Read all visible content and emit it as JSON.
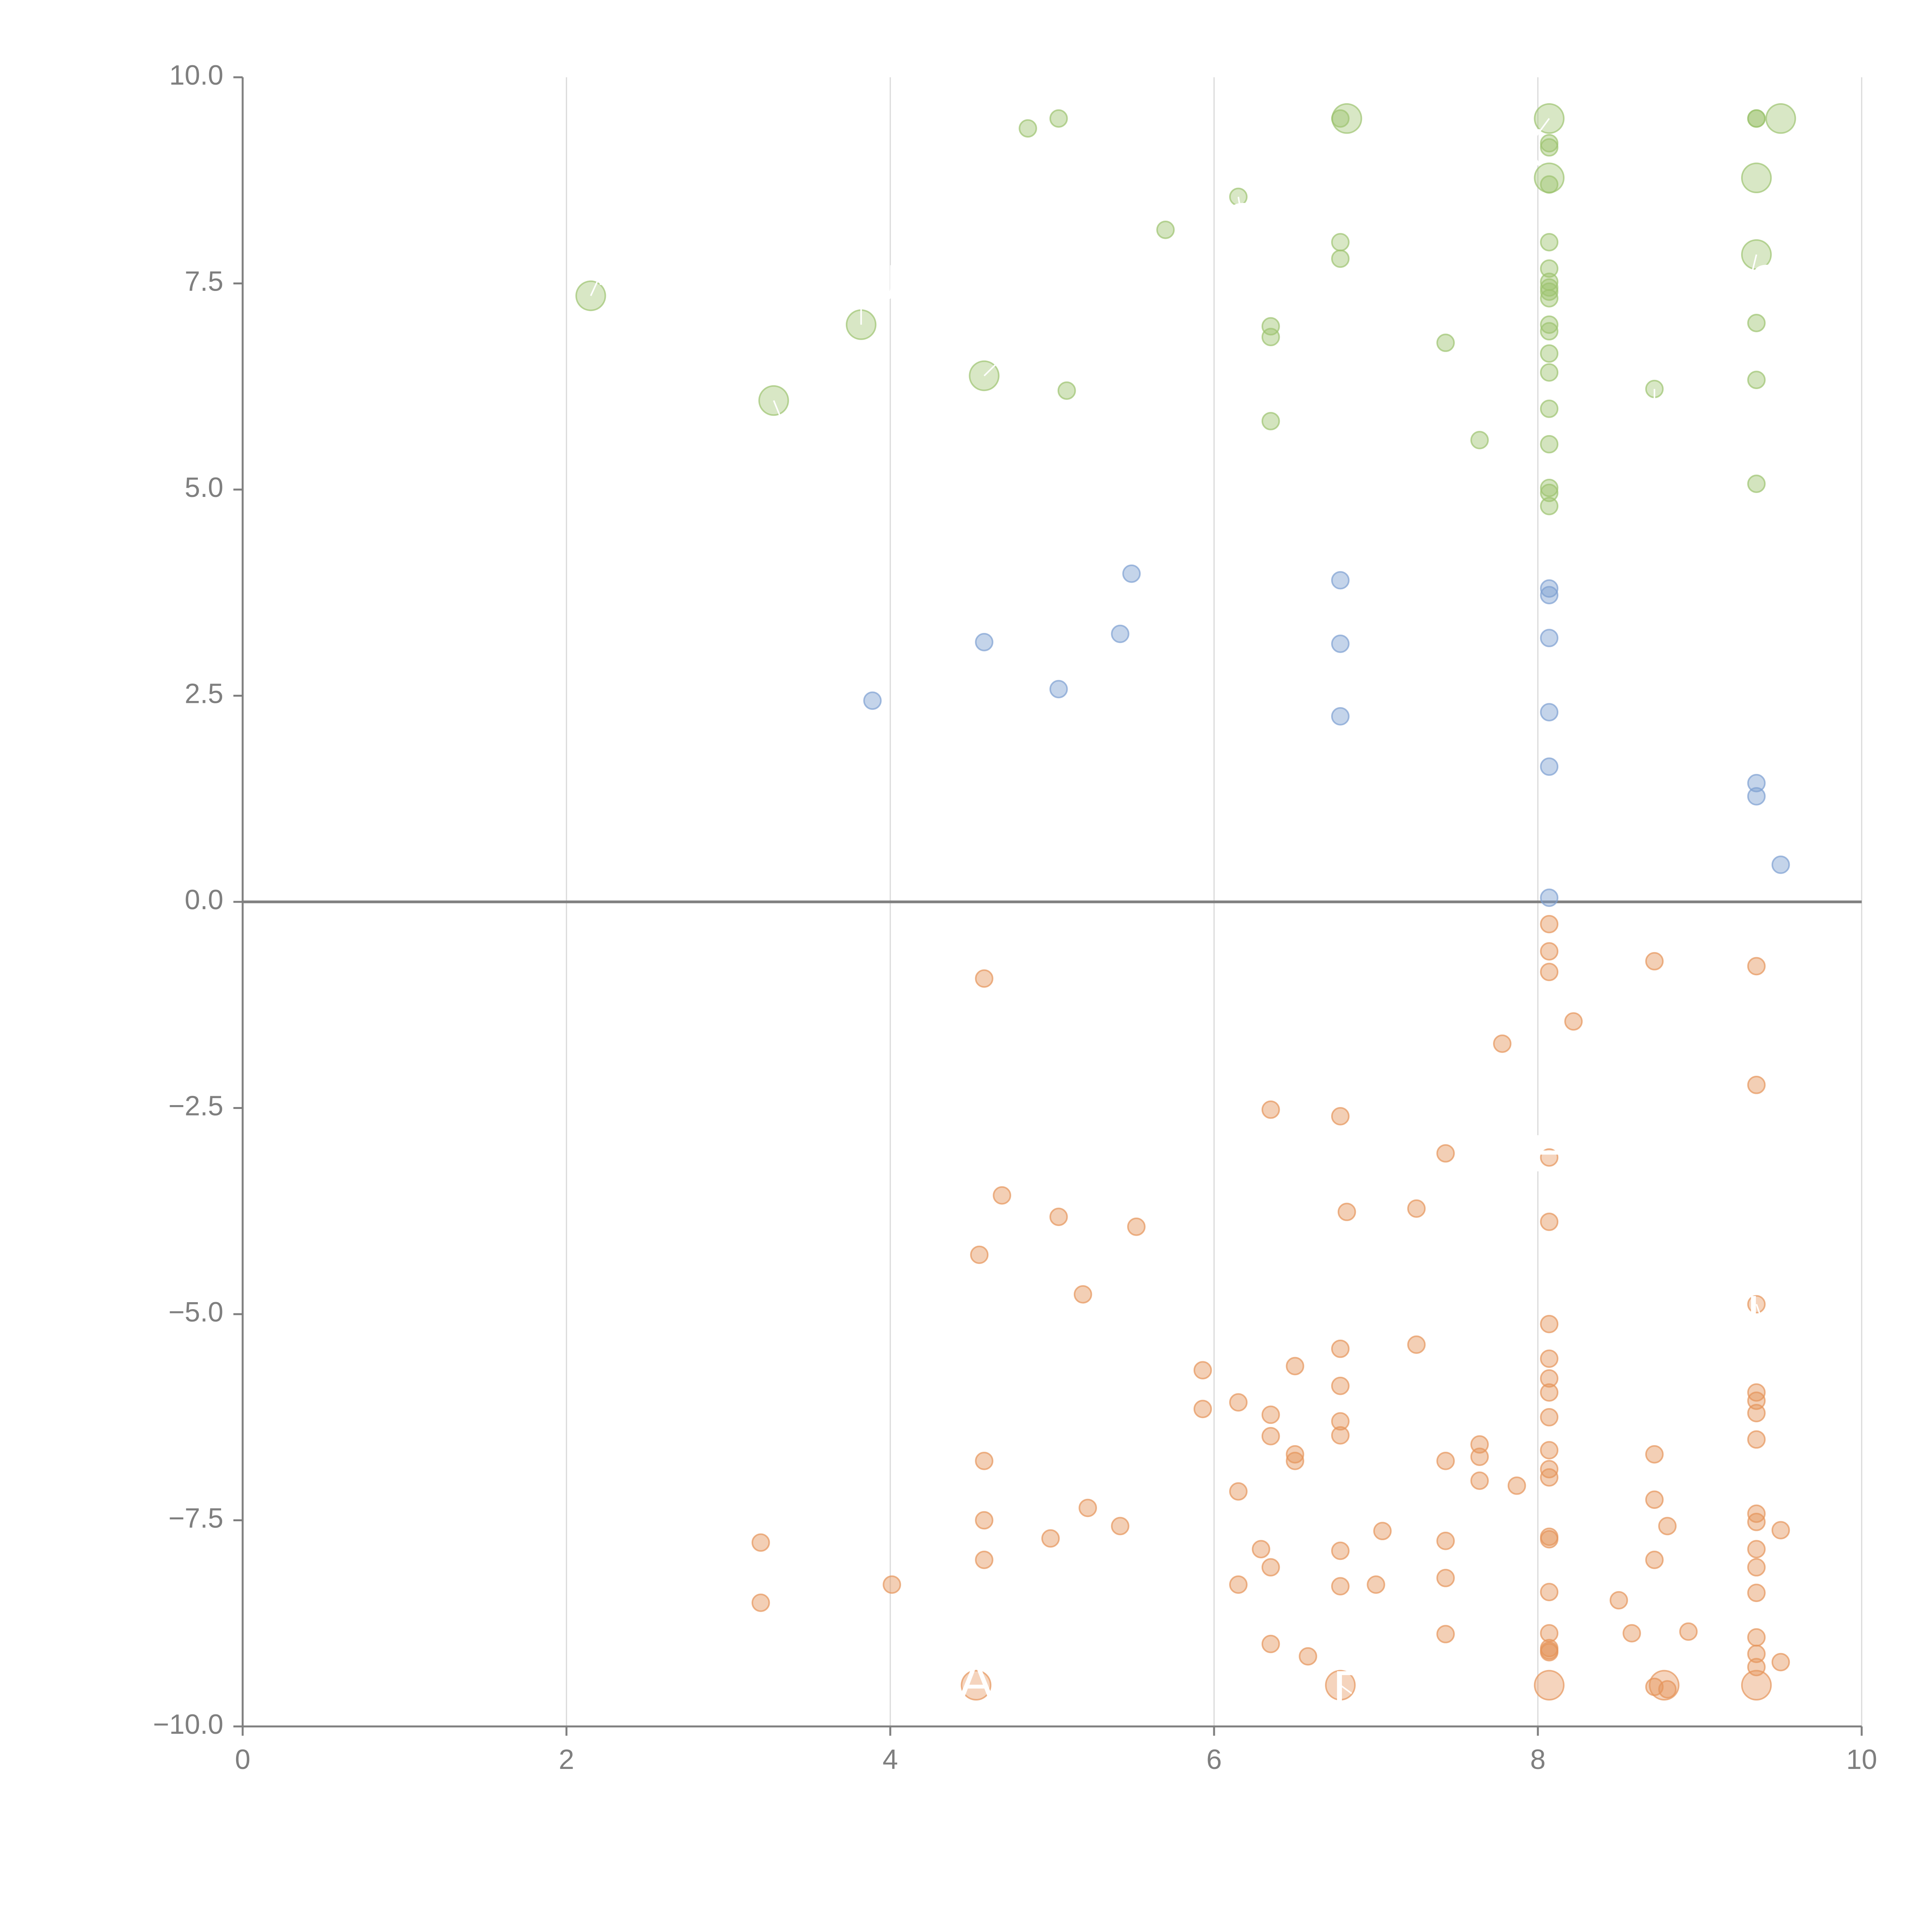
{
  "chart_data": {
    "type": "scatter",
    "title": "",
    "xlabel": "",
    "ylabel": "",
    "xlim": [
      0,
      10
    ],
    "ylim": [
      -10,
      10
    ],
    "xticks": [
      0,
      2,
      4,
      6,
      8,
      10
    ],
    "xtick_labels": [
      "0",
      "2",
      "4",
      "6",
      "8",
      "10"
    ],
    "yticks": [
      -10,
      -7.5,
      -5,
      -2.5,
      0,
      2.5,
      5,
      7.5,
      10
    ],
    "ytick_labels": [
      "−10.0",
      "−7.5",
      "−5.0",
      "−2.5",
      "0.0",
      "2.5",
      "5.0",
      "7.5",
      "10.0"
    ],
    "grid": "vertical",
    "reference_line_y": 0,
    "colors": {
      "green": "#9dc36f",
      "blue": "#7d9fd1",
      "orange": "#e5945a",
      "axis": "#7f7f7f",
      "grid": "#d9d9d9",
      "zero_line": "#808080"
    },
    "labeled_points": [
      {
        "x": 2.15,
        "y": 7.35,
        "r": 0.225,
        "series": "green",
        "label": "T",
        "lx": 2.22,
        "ly": 7.65
      },
      {
        "x": 3.82,
        "y": 7.0,
        "r": 0.225,
        "series": "green",
        "label": "CU",
        "lx": 3.82,
        "ly": 7.45
      },
      {
        "x": 4.58,
        "y": 6.38,
        "r": 0.225,
        "series": "green",
        "label": "C",
        "lx": 4.72,
        "ly": 6.65
      },
      {
        "x": 3.28,
        "y": 6.08,
        "r": 0.225,
        "series": "green",
        "label": "M",
        "lx": 3.38,
        "ly": 5.6
      },
      {
        "x": 6.82,
        "y": 9.5,
        "r": 0.225,
        "series": "green",
        "label": "",
        "lx": 6.82,
        "ly": 9.5
      },
      {
        "x": 8.07,
        "y": 9.5,
        "r": 0.225,
        "series": "green",
        "label": "X",
        "lx": 7.92,
        "ly": 9.1
      },
      {
        "x": 8.07,
        "y": 8.78,
        "r": 0.225,
        "series": "green",
        "label": "",
        "lx": 8.07,
        "ly": 8.78
      },
      {
        "x": 9.35,
        "y": 8.78,
        "r": 0.225,
        "series": "green",
        "label": "",
        "lx": 9.35,
        "ly": 8.78
      },
      {
        "x": 9.35,
        "y": 7.85,
        "r": 0.225,
        "series": "green",
        "label": "NS",
        "lx": 9.3,
        "ly": 7.45
      },
      {
        "x": 9.5,
        "y": 9.5,
        "r": 0.225,
        "series": "green",
        "label": "",
        "lx": 9.5,
        "ly": 9.5
      },
      {
        "x": 6.15,
        "y": 8.55,
        "r": 0.13,
        "series": "green",
        "label": "S",
        "lx": 6.18,
        "ly": 8.2
      },
      {
        "x": 6.78,
        "y": 8.0,
        "r": 0.13,
        "series": "green",
        "label": "",
        "lx": 6.78,
        "ly": 8.0
      },
      {
        "x": 8.72,
        "y": 6.22,
        "r": 0.13,
        "series": "green",
        "label": "D",
        "lx": 8.72,
        "ly": 5.75
      },
      {
        "x": 4.53,
        "y": -9.5,
        "r": 0.225,
        "series": "orange",
        "label": "A",
        "lx": 4.53,
        "ly": -9.5
      },
      {
        "x": 6.78,
        "y": -9.5,
        "r": 0.225,
        "series": "orange",
        "label": "D",
        "lx": 6.85,
        "ly": -9.6
      },
      {
        "x": 8.07,
        "y": -9.5,
        "r": 0.225,
        "series": "orange",
        "label": "",
        "lx": 8.07,
        "ly": -9.5
      },
      {
        "x": 8.78,
        "y": -9.5,
        "r": 0.225,
        "series": "orange",
        "label": "",
        "lx": 8.78,
        "ly": -9.5
      },
      {
        "x": 9.35,
        "y": -9.5,
        "r": 0.225,
        "series": "orange",
        "label": "",
        "lx": 9.35,
        "ly": -9.5
      },
      {
        "x": 8.07,
        "y": -3.1,
        "r": 0.13,
        "series": "orange",
        "label": "H",
        "lx": 8.07,
        "ly": -3.1
      },
      {
        "x": 9.35,
        "y": -4.88,
        "r": 0.13,
        "series": "orange",
        "label": "L",
        "lx": 9.38,
        "ly": -5.05
      }
    ],
    "series": [
      {
        "color": "green",
        "x": [
          4.85,
          5.04,
          6.78,
          5.7,
          6.78,
          6.35,
          6.35,
          5.09,
          6.35,
          7.43,
          7.64,
          8.07,
          8.07,
          8.07,
          8.07,
          8.07,
          8.07,
          8.07,
          8.07,
          8.07,
          8.07,
          8.07,
          8.07,
          8.07,
          8.07,
          8.07,
          8.07,
          8.07,
          8.07,
          9.35,
          9.35,
          9.35,
          9.35,
          9.35
        ],
        "y": [
          9.38,
          9.5,
          9.5,
          8.15,
          7.8,
          6.98,
          6.85,
          6.2,
          5.83,
          6.78,
          5.6,
          9.2,
          9.15,
          8.7,
          8.0,
          7.68,
          7.52,
          7.4,
          7.32,
          7.0,
          6.92,
          6.65,
          6.42,
          5.98,
          5.55,
          5.02,
          4.96,
          4.8,
          7.45,
          9.5,
          9.5,
          7.02,
          6.33,
          5.07
        ]
      },
      {
        "color": "blue",
        "x": [
          5.49,
          4.58,
          5.42,
          5.04,
          3.89,
          6.78,
          6.78,
          6.78,
          8.07,
          8.07,
          8.07,
          8.07,
          8.07,
          8.07,
          9.35,
          9.35,
          9.5
        ],
        "y": [
          3.98,
          3.15,
          3.25,
          2.58,
          2.44,
          3.9,
          3.13,
          2.25,
          3.8,
          3.72,
          3.2,
          2.3,
          1.64,
          0.05,
          1.44,
          1.28,
          0.45
        ]
      },
      {
        "color": "orange",
        "x": [
          4.58,
          8.07,
          8.07,
          8.07,
          8.72,
          9.35,
          8.22,
          7.78,
          6.35,
          6.78,
          9.35,
          7.43,
          8.07,
          4.69,
          5.04,
          5.52,
          6.82,
          7.25,
          8.07,
          4.55,
          5.19,
          6.78,
          6.78,
          7.25,
          6.5,
          8.07,
          8.07,
          8.07,
          8.07,
          5.93,
          5.93,
          6.15,
          6.35,
          6.35,
          6.5,
          6.5,
          6.78,
          6.78,
          7.64,
          7.64,
          7.64,
          8.07,
          8.07,
          8.07,
          8.07,
          7.87,
          4.58,
          4.58,
          4.58,
          5.22,
          5.42,
          4.99,
          3.2,
          3.2,
          4.01,
          6.15,
          6.15,
          6.29,
          6.35,
          6.35,
          6.58,
          6.78,
          6.78,
          7.0,
          7.04,
          7.43,
          7.43,
          7.43,
          7.43,
          8.07,
          8.07,
          8.07,
          8.07,
          8.07,
          8.07,
          8.72,
          8.72,
          8.72,
          8.8,
          8.5,
          8.58,
          8.93,
          9.35,
          9.35,
          9.35,
          9.35,
          9.35,
          9.35,
          9.35,
          9.35,
          9.35,
          9.35,
          9.35,
          9.35,
          9.5,
          9.5,
          8.72,
          8.8
        ],
        "y": [
          -0.93,
          -0.27,
          -0.6,
          -0.85,
          -0.72,
          -0.78,
          -1.45,
          -1.72,
          -2.52,
          -2.6,
          -2.22,
          -3.05,
          -3.88,
          -3.56,
          -3.82,
          -3.94,
          -3.76,
          -3.72,
          -5.12,
          -4.28,
          -4.76,
          -5.42,
          -5.87,
          -5.37,
          -5.63,
          -5.54,
          -5.78,
          -5.95,
          -6.25,
          -5.68,
          -6.15,
          -6.07,
          -6.22,
          -6.48,
          -6.7,
          -6.78,
          -6.3,
          -6.47,
          -6.58,
          -6.73,
          -7.02,
          -6.65,
          -6.88,
          -6.98,
          -7.7,
          -7.08,
          -6.78,
          -7.5,
          -7.98,
          -7.35,
          -7.57,
          -7.72,
          -7.77,
          -8.5,
          -8.28,
          -7.15,
          -8.28,
          -7.85,
          -8.07,
          -9.0,
          -9.15,
          -7.87,
          -8.3,
          -8.28,
          -7.63,
          -7.75,
          -8.2,
          -6.78,
          -8.88,
          -7.73,
          -8.37,
          -8.87,
          -9.05,
          -9.1,
          -9.08,
          -6.7,
          -7.25,
          -7.98,
          -7.57,
          -8.47,
          -8.87,
          -8.85,
          -5.95,
          -6.05,
          -6.2,
          -6.52,
          -7.42,
          -7.52,
          -7.85,
          -8.07,
          -8.38,
          -8.92,
          -9.12,
          -9.28,
          -7.62,
          -9.22,
          -9.52,
          -9.55
        ]
      }
    ]
  }
}
